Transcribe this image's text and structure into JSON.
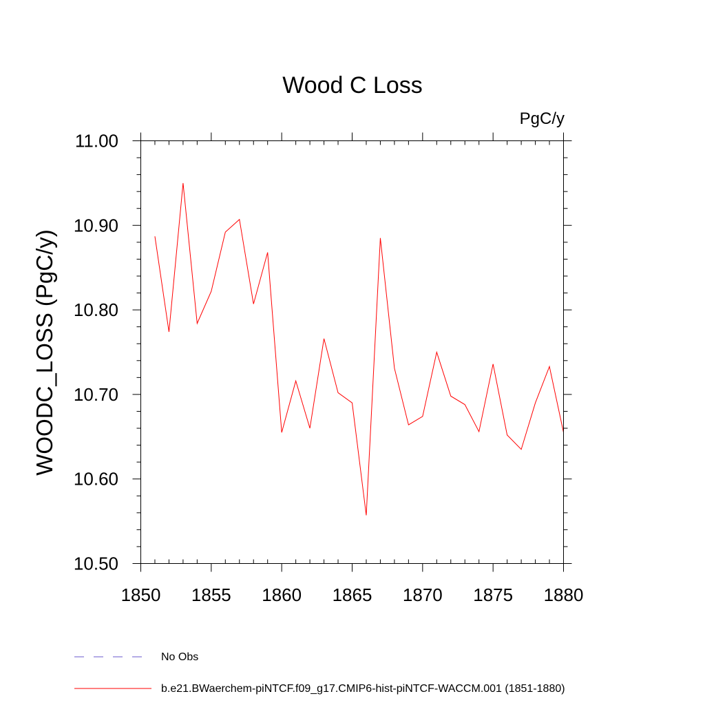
{
  "chart_data": {
    "type": "line",
    "title": "Wood C Loss",
    "units_label": "PgC/y",
    "ylabel": "WOODC_LOSS  (PgC/y)",
    "xlabel": "",
    "xlim": [
      1850,
      1880
    ],
    "ylim": [
      10.5,
      11.0
    ],
    "x_ticks": [
      1850,
      1855,
      1860,
      1865,
      1870,
      1875,
      1880
    ],
    "x_tick_labels": [
      "1850",
      "1855",
      "1860",
      "1865",
      "1870",
      "1875",
      "1880"
    ],
    "y_ticks": [
      10.5,
      10.6,
      10.7,
      10.8,
      10.9,
      11.0
    ],
    "y_tick_labels": [
      "10.50",
      "10.60",
      "10.70",
      "10.80",
      "10.90",
      "11.00"
    ],
    "grid": false,
    "legend_position": "bottom",
    "series": [
      {
        "name": "b.e21.BWaerchem-piNTCF.f09_g17.CMIP6-hist-piNTCF-WACCM.001 (1851-1880)",
        "color": "#ff0000",
        "style": "solid",
        "x": [
          1851,
          1852,
          1853,
          1854,
          1855,
          1856,
          1857,
          1858,
          1859,
          1860,
          1861,
          1862,
          1863,
          1864,
          1865,
          1866,
          1867,
          1868,
          1869,
          1870,
          1871,
          1872,
          1873,
          1874,
          1875,
          1876,
          1877,
          1878,
          1879,
          1880
        ],
        "values": [
          10.887,
          10.774,
          10.95,
          10.784,
          10.822,
          10.892,
          10.907,
          10.807,
          10.868,
          10.655,
          10.716,
          10.66,
          10.766,
          10.702,
          10.69,
          10.557,
          10.885,
          10.731,
          10.664,
          10.674,
          10.75,
          10.698,
          10.688,
          10.656,
          10.736,
          10.652,
          10.635,
          10.69,
          10.733,
          10.655
        ]
      }
    ],
    "legend": [
      {
        "label": "No Obs",
        "color": "#6a5acd",
        "style": "dashed"
      },
      {
        "label": "b.e21.BWaerchem-piNTCF.f09_g17.CMIP6-hist-piNTCF-WACCM.001 (1851-1880)",
        "color": "#ff0000",
        "style": "solid"
      }
    ]
  }
}
